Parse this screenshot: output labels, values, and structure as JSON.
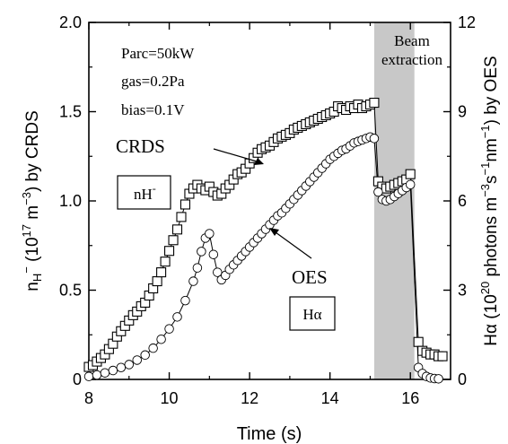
{
  "chart_data": {
    "type": "scatter",
    "x_axis": {
      "label": "Time (s)",
      "range": [
        8,
        17
      ],
      "ticks": [
        8,
        10,
        12,
        14,
        16
      ],
      "tick_labels": [
        "8",
        "10",
        "12",
        "14",
        "16"
      ]
    },
    "y_left": {
      "label_parts": {
        "n": "n",
        "sub": "H",
        "sup_minus": "−",
        "mid": " (10",
        "exp": "17",
        "unit": " m",
        "unit_exp": "−3",
        "tail": ") by CRDS"
      },
      "range": [
        0,
        2.0
      ],
      "ticks": [
        0,
        0.5,
        1.0,
        1.5,
        2.0
      ],
      "tick_labels": [
        "0",
        "0.5",
        "1.0",
        "1.5",
        "2.0"
      ]
    },
    "y_right": {
      "label_parts": {
        "h": "Hα (10",
        "exp1": "20",
        "mid": " photons m",
        "e2": "−3",
        "s": "s",
        "e3": "−1",
        "nm": "nm",
        "e4": "−1",
        "tail": ") by OES"
      },
      "range": [
        0,
        12
      ],
      "ticks": [
        0,
        3,
        6,
        9,
        12
      ],
      "tick_labels": [
        "0",
        "3",
        "6",
        "9",
        "12"
      ]
    },
    "shaded_region": {
      "x_start": 15.1,
      "x_end": 16.1,
      "label_line1": "Beam",
      "label_line2": "extraction",
      "color": "#c8c8c8"
    },
    "annotations": {
      "conditions": [
        "Parc=50kW",
        "gas=0.2Pa",
        "bias=0.1V"
      ],
      "crds_label": "CRDS",
      "crds_box": {
        "text": "nH",
        "sup": "-"
      },
      "oes_label": "OES",
      "oes_box": "Hα"
    },
    "series": [
      {
        "name": "CRDS",
        "marker": "square",
        "axis": "left",
        "points": [
          [
            8.0,
            0.07
          ],
          [
            8.1,
            0.08
          ],
          [
            8.2,
            0.1
          ],
          [
            8.3,
            0.12
          ],
          [
            8.4,
            0.14
          ],
          [
            8.5,
            0.17
          ],
          [
            8.6,
            0.2
          ],
          [
            8.7,
            0.24
          ],
          [
            8.8,
            0.27
          ],
          [
            8.9,
            0.3
          ],
          [
            9.0,
            0.33
          ],
          [
            9.1,
            0.36
          ],
          [
            9.2,
            0.38
          ],
          [
            9.3,
            0.41
          ],
          [
            9.4,
            0.43
          ],
          [
            9.5,
            0.47
          ],
          [
            9.6,
            0.51
          ],
          [
            9.7,
            0.55
          ],
          [
            9.8,
            0.6
          ],
          [
            9.9,
            0.66
          ],
          [
            10.0,
            0.72
          ],
          [
            10.1,
            0.78
          ],
          [
            10.2,
            0.84
          ],
          [
            10.3,
            0.91
          ],
          [
            10.4,
            0.98
          ],
          [
            10.5,
            1.04
          ],
          [
            10.6,
            1.07
          ],
          [
            10.7,
            1.09
          ],
          [
            10.8,
            1.07
          ],
          [
            10.9,
            1.06
          ],
          [
            11.0,
            1.08
          ],
          [
            11.1,
            1.05
          ],
          [
            11.2,
            1.03
          ],
          [
            11.3,
            1.04
          ],
          [
            11.4,
            1.07
          ],
          [
            11.5,
            1.09
          ],
          [
            11.6,
            1.12
          ],
          [
            11.7,
            1.15
          ],
          [
            11.8,
            1.16
          ],
          [
            11.9,
            1.18
          ],
          [
            12.0,
            1.21
          ],
          [
            12.1,
            1.24
          ],
          [
            12.2,
            1.27
          ],
          [
            12.3,
            1.29
          ],
          [
            12.4,
            1.3
          ],
          [
            12.5,
            1.31
          ],
          [
            12.6,
            1.33
          ],
          [
            12.7,
            1.35
          ],
          [
            12.8,
            1.36
          ],
          [
            12.9,
            1.37
          ],
          [
            13.0,
            1.38
          ],
          [
            13.1,
            1.4
          ],
          [
            13.2,
            1.41
          ],
          [
            13.3,
            1.42
          ],
          [
            13.4,
            1.43
          ],
          [
            13.5,
            1.44
          ],
          [
            13.6,
            1.45
          ],
          [
            13.7,
            1.46
          ],
          [
            13.8,
            1.47
          ],
          [
            13.9,
            1.48
          ],
          [
            14.0,
            1.49
          ],
          [
            14.1,
            1.5
          ],
          [
            14.2,
            1.53
          ],
          [
            14.3,
            1.52
          ],
          [
            14.4,
            1.51
          ],
          [
            14.5,
            1.53
          ],
          [
            14.6,
            1.52
          ],
          [
            14.7,
            1.54
          ],
          [
            14.8,
            1.52
          ],
          [
            14.9,
            1.53
          ],
          [
            15.0,
            1.54
          ],
          [
            15.1,
            1.55
          ],
          [
            15.2,
            1.11
          ],
          [
            15.3,
            1.08
          ],
          [
            15.4,
            1.07
          ],
          [
            15.5,
            1.08
          ],
          [
            15.6,
            1.09
          ],
          [
            15.7,
            1.1
          ],
          [
            15.8,
            1.11
          ],
          [
            15.9,
            1.12
          ],
          [
            16.0,
            1.15
          ],
          [
            16.2,
            0.21
          ],
          [
            16.3,
            0.16
          ],
          [
            16.4,
            0.15
          ],
          [
            16.5,
            0.14
          ],
          [
            16.6,
            0.14
          ],
          [
            16.7,
            0.13
          ],
          [
            16.8,
            0.13
          ]
        ]
      },
      {
        "name": "OES",
        "marker": "circle",
        "axis": "right",
        "points": [
          [
            8.0,
            0.1
          ],
          [
            8.2,
            0.15
          ],
          [
            8.4,
            0.22
          ],
          [
            8.6,
            0.3
          ],
          [
            8.8,
            0.4
          ],
          [
            9.0,
            0.5
          ],
          [
            9.2,
            0.65
          ],
          [
            9.4,
            0.82
          ],
          [
            9.6,
            1.05
          ],
          [
            9.8,
            1.35
          ],
          [
            10.0,
            1.7
          ],
          [
            10.2,
            2.1
          ],
          [
            10.4,
            2.65
          ],
          [
            10.6,
            3.3
          ],
          [
            10.7,
            3.75
          ],
          [
            10.8,
            4.3
          ],
          [
            10.9,
            4.75
          ],
          [
            11.0,
            4.9
          ],
          [
            11.1,
            4.2
          ],
          [
            11.2,
            3.6
          ],
          [
            11.3,
            3.35
          ],
          [
            11.4,
            3.5
          ],
          [
            11.5,
            3.7
          ],
          [
            11.6,
            3.85
          ],
          [
            11.7,
            4.0
          ],
          [
            11.8,
            4.15
          ],
          [
            11.9,
            4.3
          ],
          [
            12.0,
            4.45
          ],
          [
            12.1,
            4.6
          ],
          [
            12.2,
            4.75
          ],
          [
            12.3,
            4.9
          ],
          [
            12.4,
            5.05
          ],
          [
            12.5,
            5.2
          ],
          [
            12.6,
            5.35
          ],
          [
            12.7,
            5.5
          ],
          [
            12.8,
            5.6
          ],
          [
            12.9,
            5.75
          ],
          [
            13.0,
            5.9
          ],
          [
            13.1,
            6.05
          ],
          [
            13.2,
            6.2
          ],
          [
            13.3,
            6.35
          ],
          [
            13.4,
            6.5
          ],
          [
            13.5,
            6.65
          ],
          [
            13.6,
            6.8
          ],
          [
            13.7,
            6.95
          ],
          [
            13.8,
            7.1
          ],
          [
            13.9,
            7.25
          ],
          [
            14.0,
            7.4
          ],
          [
            14.1,
            7.5
          ],
          [
            14.2,
            7.6
          ],
          [
            14.3,
            7.7
          ],
          [
            14.4,
            7.75
          ],
          [
            14.5,
            7.85
          ],
          [
            14.6,
            7.95
          ],
          [
            14.7,
            8.0
          ],
          [
            14.8,
            8.05
          ],
          [
            14.9,
            8.1
          ],
          [
            15.0,
            8.15
          ],
          [
            15.1,
            8.1
          ],
          [
            15.2,
            6.3
          ],
          [
            15.3,
            6.05
          ],
          [
            15.4,
            6.0
          ],
          [
            15.5,
            6.05
          ],
          [
            15.6,
            6.15
          ],
          [
            15.7,
            6.25
          ],
          [
            15.8,
            6.35
          ],
          [
            15.9,
            6.45
          ],
          [
            16.0,
            6.55
          ],
          [
            16.2,
            0.4
          ],
          [
            16.3,
            0.2
          ],
          [
            16.4,
            0.1
          ],
          [
            16.5,
            0.05
          ],
          [
            16.6,
            0.03
          ],
          [
            16.7,
            0.02
          ]
        ]
      }
    ]
  }
}
